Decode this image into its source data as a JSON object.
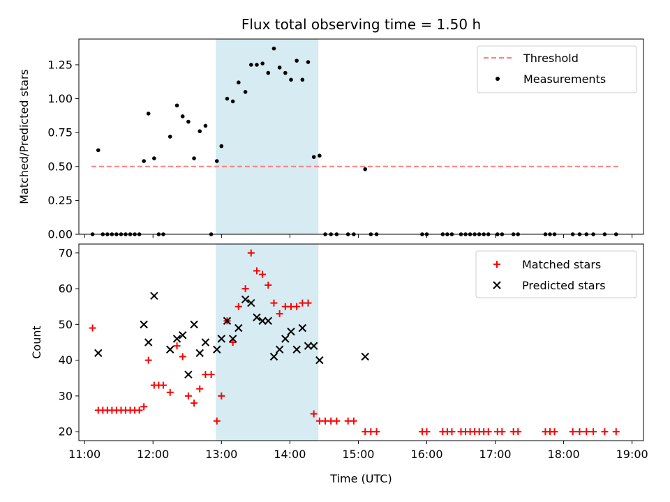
{
  "chart_data": [
    {
      "type": "scatter",
      "title": "Flux total observing time = 1.50 h",
      "ylabel": "Matched/Predicted stars",
      "xlabel": "",
      "xlim": [
        "10:55",
        "19:10"
      ],
      "ylim": [
        0,
        1.44
      ],
      "yticks": [
        0.0,
        0.25,
        0.5,
        0.75,
        1.0,
        1.25
      ],
      "ytick_labels": [
        "0.00",
        "0.25",
        "0.50",
        "0.75",
        "1.00",
        "1.25"
      ],
      "highlight_span": [
        "12:55",
        "14:25"
      ],
      "highlight_color": "#add8e6",
      "grid": false,
      "legend_position": "top-right",
      "threshold": {
        "name": "Threshold",
        "value": 0.5,
        "x_range": [
          "11:06",
          "18:48"
        ],
        "color": "#ff8080",
        "style": "dashed"
      },
      "series": [
        {
          "name": "Measurements",
          "color": "#000000",
          "marker": "dot",
          "points": [
            [
              "11:07",
              0.0
            ],
            [
              "11:12",
              0.62
            ],
            [
              "11:16",
              0.0
            ],
            [
              "11:20",
              0.0
            ],
            [
              "11:24",
              0.0
            ],
            [
              "11:28",
              0.0
            ],
            [
              "11:32",
              0.0
            ],
            [
              "11:36",
              0.0
            ],
            [
              "11:40",
              0.0
            ],
            [
              "11:44",
              0.0
            ],
            [
              "11:48",
              0.0
            ],
            [
              "11:52",
              0.54
            ],
            [
              "11:56",
              0.89
            ],
            [
              "12:01",
              0.56
            ],
            [
              "12:05",
              0.0
            ],
            [
              "12:09",
              0.0
            ],
            [
              "12:15",
              0.72
            ],
            [
              "12:21",
              0.95
            ],
            [
              "12:26",
              0.87
            ],
            [
              "12:31",
              0.83
            ],
            [
              "12:36",
              0.56
            ],
            [
              "12:41",
              0.76
            ],
            [
              "12:46",
              0.8
            ],
            [
              "12:51",
              0.0
            ],
            [
              "12:56",
              0.54
            ],
            [
              "13:00",
              0.65
            ],
            [
              "13:05",
              1.0
            ],
            [
              "13:10",
              0.98
            ],
            [
              "13:15",
              1.12
            ],
            [
              "13:21",
              1.05
            ],
            [
              "13:26",
              1.25
            ],
            [
              "13:31",
              1.25
            ],
            [
              "13:36",
              1.26
            ],
            [
              "13:41",
              1.19
            ],
            [
              "13:46",
              1.37
            ],
            [
              "13:51",
              1.23
            ],
            [
              "13:56",
              1.19
            ],
            [
              "14:01",
              1.14
            ],
            [
              "14:06",
              1.28
            ],
            [
              "14:11",
              1.14
            ],
            [
              "14:16",
              1.27
            ],
            [
              "14:21",
              0.57
            ],
            [
              "14:26",
              0.58
            ],
            [
              "14:31",
              0.0
            ],
            [
              "14:36",
              0.0
            ],
            [
              "14:41",
              0.0
            ],
            [
              "14:51",
              0.0
            ],
            [
              "14:56",
              0.0
            ],
            [
              "15:06",
              0.48
            ],
            [
              "15:11",
              0.0
            ],
            [
              "15:16",
              0.0
            ],
            [
              "15:56",
              0.0
            ],
            [
              "16:00",
              0.0
            ],
            [
              "16:14",
              0.0
            ],
            [
              "16:18",
              0.0
            ],
            [
              "16:22",
              0.0
            ],
            [
              "16:30",
              0.0
            ],
            [
              "16:34",
              0.0
            ],
            [
              "16:38",
              0.0
            ],
            [
              "16:42",
              0.0
            ],
            [
              "16:46",
              0.0
            ],
            [
              "16:50",
              0.0
            ],
            [
              "16:54",
              0.0
            ],
            [
              "17:02",
              0.0
            ],
            [
              "17:06",
              0.0
            ],
            [
              "17:16",
              0.0
            ],
            [
              "17:20",
              0.0
            ],
            [
              "17:44",
              0.0
            ],
            [
              "17:48",
              0.0
            ],
            [
              "17:52",
              0.0
            ],
            [
              "18:08",
              0.0
            ],
            [
              "18:14",
              0.0
            ],
            [
              "18:20",
              0.0
            ],
            [
              "18:26",
              0.0
            ],
            [
              "18:36",
              0.0
            ],
            [
              "18:46",
              0.0
            ]
          ]
        }
      ]
    },
    {
      "type": "scatter",
      "title": "",
      "ylabel": "Count",
      "xlabel": "Time (UTC)",
      "xlim": [
        "10:55",
        "19:10"
      ],
      "ylim": [
        17.5,
        72.5
      ],
      "yticks": [
        20,
        30,
        40,
        50,
        60,
        70
      ],
      "ytick_labels": [
        "20",
        "30",
        "40",
        "50",
        "60",
        "70"
      ],
      "xticks": [
        "11:00",
        "12:00",
        "13:00",
        "14:00",
        "15:00",
        "16:00",
        "17:00",
        "18:00",
        "19:00"
      ],
      "xtick_labels": [
        "11:00",
        "12:00",
        "13:00",
        "14:00",
        "15:00",
        "16:00",
        "17:00",
        "18:00",
        "19:00"
      ],
      "highlight_span": [
        "12:55",
        "14:25"
      ],
      "highlight_color": "#add8e6",
      "grid": false,
      "legend_position": "top-right",
      "series": [
        {
          "name": "Matched stars",
          "color": "#ff0000",
          "marker": "plus",
          "points": [
            [
              "11:07",
              49
            ],
            [
              "11:12",
              26
            ],
            [
              "11:16",
              26
            ],
            [
              "11:20",
              26
            ],
            [
              "11:24",
              26
            ],
            [
              "11:28",
              26
            ],
            [
              "11:32",
              26
            ],
            [
              "11:36",
              26
            ],
            [
              "11:40",
              26
            ],
            [
              "11:44",
              26
            ],
            [
              "11:48",
              26
            ],
            [
              "11:52",
              27
            ],
            [
              "11:56",
              40
            ],
            [
              "12:01",
              33
            ],
            [
              "12:05",
              33
            ],
            [
              "12:09",
              33
            ],
            [
              "12:15",
              31
            ],
            [
              "12:21",
              44
            ],
            [
              "12:26",
              41
            ],
            [
              "12:31",
              30
            ],
            [
              "12:36",
              28
            ],
            [
              "12:41",
              32
            ],
            [
              "12:46",
              36
            ],
            [
              "12:51",
              36
            ],
            [
              "12:56",
              23
            ],
            [
              "13:00",
              30
            ],
            [
              "13:05",
              51
            ],
            [
              "13:10",
              45
            ],
            [
              "13:15",
              55
            ],
            [
              "13:21",
              60
            ],
            [
              "13:26",
              70
            ],
            [
              "13:31",
              65
            ],
            [
              "13:36",
              64
            ],
            [
              "13:41",
              61
            ],
            [
              "13:46",
              56
            ],
            [
              "13:51",
              53
            ],
            [
              "13:56",
              55
            ],
            [
              "14:01",
              55
            ],
            [
              "14:06",
              55
            ],
            [
              "14:11",
              56
            ],
            [
              "14:16",
              56
            ],
            [
              "14:21",
              25
            ],
            [
              "14:26",
              23
            ],
            [
              "14:31",
              23
            ],
            [
              "14:36",
              23
            ],
            [
              "14:41",
              23
            ],
            [
              "14:51",
              23
            ],
            [
              "14:56",
              23
            ],
            [
              "15:06",
              20
            ],
            [
              "15:11",
              20
            ],
            [
              "15:16",
              20
            ],
            [
              "15:56",
              20
            ],
            [
              "16:00",
              20
            ],
            [
              "16:14",
              20
            ],
            [
              "16:18",
              20
            ],
            [
              "16:22",
              20
            ],
            [
              "16:30",
              20
            ],
            [
              "16:34",
              20
            ],
            [
              "16:38",
              20
            ],
            [
              "16:42",
              20
            ],
            [
              "16:46",
              20
            ],
            [
              "16:50",
              20
            ],
            [
              "16:54",
              20
            ],
            [
              "17:02",
              20
            ],
            [
              "17:06",
              20
            ],
            [
              "17:16",
              20
            ],
            [
              "17:20",
              20
            ],
            [
              "17:44",
              20
            ],
            [
              "17:48",
              20
            ],
            [
              "17:52",
              20
            ],
            [
              "18:08",
              20
            ],
            [
              "18:14",
              20
            ],
            [
              "18:20",
              20
            ],
            [
              "18:26",
              20
            ],
            [
              "18:36",
              20
            ],
            [
              "18:46",
              20
            ]
          ]
        },
        {
          "name": "Predicted stars",
          "color": "#000000",
          "marker": "x",
          "points": [
            [
              "11:12",
              42
            ],
            [
              "11:52",
              50
            ],
            [
              "11:56",
              45
            ],
            [
              "12:01",
              58
            ],
            [
              "12:15",
              43
            ],
            [
              "12:21",
              46
            ],
            [
              "12:26",
              47
            ],
            [
              "12:31",
              36
            ],
            [
              "12:36",
              50
            ],
            [
              "12:41",
              42
            ],
            [
              "12:46",
              45
            ],
            [
              "12:56",
              43
            ],
            [
              "13:00",
              46
            ],
            [
              "13:05",
              51
            ],
            [
              "13:10",
              46
            ],
            [
              "13:15",
              49
            ],
            [
              "13:21",
              57
            ],
            [
              "13:26",
              56
            ],
            [
              "13:31",
              52
            ],
            [
              "13:36",
              51
            ],
            [
              "13:41",
              51
            ],
            [
              "13:46",
              41
            ],
            [
              "13:51",
              43
            ],
            [
              "13:56",
              46
            ],
            [
              "14:01",
              48
            ],
            [
              "14:06",
              43
            ],
            [
              "14:11",
              49
            ],
            [
              "14:16",
              44
            ],
            [
              "14:21",
              44
            ],
            [
              "14:26",
              40
            ],
            [
              "15:06",
              41
            ]
          ]
        }
      ]
    }
  ]
}
